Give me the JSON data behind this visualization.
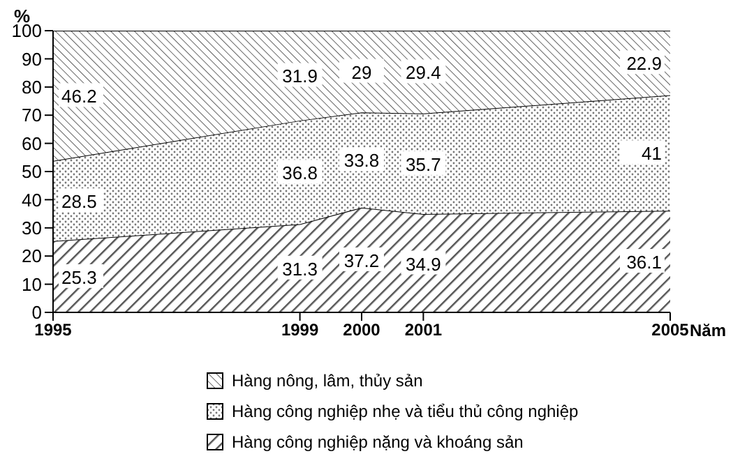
{
  "chart_data": {
    "type": "area",
    "stacked": true,
    "xlabel": "Năm",
    "ylabel": "%",
    "x": [
      1995,
      1999,
      2000,
      2001,
      2005
    ],
    "xlim": [
      1995,
      2005
    ],
    "xticks": [
      1995,
      1999,
      2000,
      2001,
      2005
    ],
    "ylim": [
      0,
      100
    ],
    "yticks": [
      0,
      10,
      20,
      30,
      40,
      50,
      60,
      70,
      80,
      90,
      100
    ],
    "series": [
      {
        "name": "Hàng công nghiệp nặng và khoáng sản",
        "color": "#555555",
        "values": [
          25.3,
          31.3,
          37.2,
          34.9,
          36.1
        ]
      },
      {
        "name": "Hàng công nghiệp nhẹ và tiểu thủ công nghiệp",
        "color": "#777777",
        "values": [
          28.5,
          36.8,
          33.8,
          35.7,
          41
        ]
      },
      {
        "name": "Hàng nông, lâm, thủy sản",
        "color": "#666666",
        "values": [
          46.2,
          31.9,
          29,
          29.4,
          22.9
        ]
      }
    ],
    "data_labels": true,
    "legend": "bottom",
    "grid": false
  }
}
